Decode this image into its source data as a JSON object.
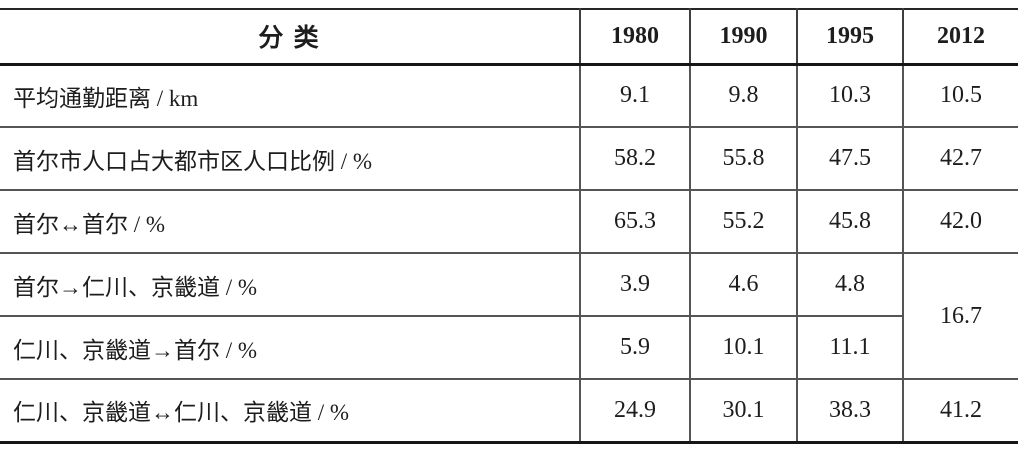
{
  "table": {
    "header": {
      "category": "分 类",
      "years": [
        "1980",
        "1990",
        "1995",
        "2012"
      ]
    },
    "rows": [
      {
        "label": "平均通勤距离 / km",
        "values": [
          "9.1",
          "9.8",
          "10.3",
          "10.5"
        ]
      },
      {
        "label": "首尔市人口占大都市区人口比例 / %",
        "values": [
          "58.2",
          "55.8",
          "47.5",
          "42.7"
        ]
      },
      {
        "label": "首尔↔首尔 / %",
        "values": [
          "65.3",
          "55.2",
          "45.8",
          "42.0"
        ]
      },
      {
        "label": "首尔→仁川、京畿道 / %",
        "values": [
          "3.9",
          "4.6",
          "4.8"
        ],
        "merged_2012": "16.7",
        "merged_note": "cell spans this row and the next row in the 2012 column"
      },
      {
        "label": "仁川、京畿道→首尔 / %",
        "values": [
          "5.9",
          "10.1",
          "11.1"
        ]
      },
      {
        "label": "仁川、京畿道↔仁川、京畿道 / %",
        "values": [
          "24.9",
          "30.1",
          "38.3",
          "41.2"
        ]
      }
    ],
    "colors": {
      "heavy_rule": "#161616",
      "light_rule": "#555555",
      "text": "#1d1d1d",
      "background": "#ffffff"
    }
  }
}
